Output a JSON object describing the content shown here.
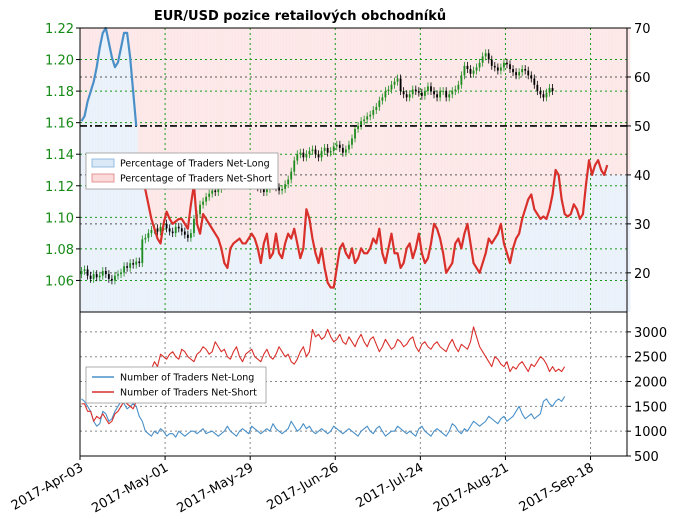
{
  "chart_data": {
    "type": "line",
    "title": "EUR/USD pozice retailových obchodníků",
    "colors": {
      "price_axis": "#168a16",
      "long": "#4a90c8",
      "short": "#d9302b",
      "candle_up": "#1e8c1e",
      "candle_down": "#000000",
      "long_fill": "#dbe8f5",
      "short_fill": "#fbdada",
      "level_line": "#000000"
    },
    "x_labels": [
      "2017-Apr-03",
      "2017-May-01",
      "2017-May-29",
      "2017-Jun-26",
      "2017-Jul-24",
      "2017-Aug-21",
      "2017-Sep-18"
    ],
    "top_panel": {
      "y_left_ticks": [
        "1.06",
        "1.08",
        "1.10",
        "1.12",
        "1.14",
        "1.16",
        "1.18",
        "1.20",
        "1.22"
      ],
      "y_left_range": [
        1.04,
        1.22
      ],
      "y_right_ticks": [
        "20",
        "30",
        "40",
        "50",
        "60",
        "70"
      ],
      "y_right_range": [
        12,
        70
      ],
      "reference_level": 50,
      "legend": {
        "position": "center-left",
        "entries": [
          "Percentage of Traders Net-Long",
          "Percentage of Traders Net-Short"
        ]
      },
      "price_candles": {
        "start": "2017-04-03",
        "interval_days": 1,
        "close": [
          1.066,
          1.067,
          1.063,
          1.061,
          1.064,
          1.062,
          1.063,
          1.066,
          1.064,
          1.061,
          1.06,
          1.063,
          1.064,
          1.065,
          1.069,
          1.068,
          1.071,
          1.07,
          1.072,
          1.071,
          1.086,
          1.087,
          1.09,
          1.092,
          1.093,
          1.091,
          1.094,
          1.096,
          1.093,
          1.091,
          1.09,
          1.094,
          1.093,
          1.091,
          1.089,
          1.087,
          1.09,
          1.099,
          1.102,
          1.108,
          1.11,
          1.113,
          1.115,
          1.117,
          1.116,
          1.118,
          1.12,
          1.122,
          1.121,
          1.122,
          1.124,
          1.126,
          1.123,
          1.125,
          1.127,
          1.125,
          1.123,
          1.121,
          1.119,
          1.118,
          1.116,
          1.118,
          1.12,
          1.121,
          1.119,
          1.117,
          1.118,
          1.121,
          1.124,
          1.129,
          1.136,
          1.14,
          1.141,
          1.138,
          1.14,
          1.142,
          1.143,
          1.14,
          1.138,
          1.142,
          1.144,
          1.141,
          1.142,
          1.145,
          1.146,
          1.144,
          1.141,
          1.143,
          1.146,
          1.15,
          1.156,
          1.158,
          1.161,
          1.162,
          1.164,
          1.165,
          1.168,
          1.17,
          1.174,
          1.176,
          1.18,
          1.181,
          1.184,
          1.186,
          1.188,
          1.18,
          1.178,
          1.176,
          1.178,
          1.181,
          1.18,
          1.179,
          1.177,
          1.18,
          1.183,
          1.18,
          1.178,
          1.176,
          1.18,
          1.18,
          1.176,
          1.178,
          1.18,
          1.181,
          1.184,
          1.19,
          1.196,
          1.194,
          1.191,
          1.193,
          1.195,
          1.198,
          1.202,
          1.204,
          1.2,
          1.196,
          1.195,
          1.193,
          1.195,
          1.198,
          1.197,
          1.194,
          1.192,
          1.19,
          1.192,
          1.194,
          1.193,
          1.19,
          1.188,
          1.184,
          1.18,
          1.178,
          1.176,
          1.179,
          1.182,
          1.18
        ]
      },
      "net_long_percent": {
        "start": "2017-04-03",
        "interval_days": 1,
        "values": [
          51.0,
          52.0,
          55.0,
          57.0,
          59.0,
          62.0,
          66.0,
          69.0,
          70.0,
          67.0,
          64.0,
          62.0,
          63.0,
          66.0,
          69.0,
          69.0,
          64.0,
          57.0,
          50.0
        ]
      },
      "net_short_percent": {
        "start": "2017-04-22",
        "interval_days": 1,
        "values": [
          44.0,
          42.0,
          37.0,
          34.0,
          31.0,
          29.0,
          27.0,
          26.0,
          30.0,
          32.5,
          31.0,
          30.0,
          30.5,
          31.0,
          31.0,
          30.0,
          29.0,
          34.0,
          38.0,
          30.0,
          28.0,
          32.0,
          31.0,
          30.0,
          29.0,
          28.0,
          27.0,
          25.0,
          22.0,
          21.0,
          25.0,
          26.0,
          26.5,
          27.0,
          26.0,
          26.0,
          27.0,
          28.0,
          27.0,
          25.0,
          22.0,
          26.0,
          28.0,
          23.0,
          24.0,
          28.0,
          24.0,
          23.0,
          26.0,
          28.0,
          27.0,
          29.0,
          26.0,
          23.0,
          25.0,
          33.0,
          31.0,
          27.0,
          24.0,
          22.0,
          25.0,
          21.0,
          18.0,
          17.0,
          17.0,
          21.0,
          25.0,
          26.0,
          24.0,
          23.0,
          25.0,
          22.0,
          23.0,
          25.0,
          24.0,
          24.0,
          25.0,
          27.0,
          26.0,
          29.0,
          24.0,
          22.0,
          25.0,
          28.0,
          24.0,
          24.0,
          21.0,
          22.0,
          25.0,
          26.0,
          23.0,
          25.0,
          28.0,
          24.0,
          22.0,
          23.0,
          26.0,
          30.0,
          29.0,
          27.0,
          24.0,
          20.0,
          21.0,
          22.0,
          26.0,
          27.0,
          25.0,
          28.0,
          30.0,
          26.0,
          22.0,
          21.0,
          20.0,
          22.0,
          24.0,
          27.0,
          26.0,
          27.0,
          28.0,
          30.0,
          26.0,
          24.0,
          22.0,
          25.0,
          27.0,
          28.0,
          31.0,
          33.0,
          35.0,
          36.0,
          33.0,
          32.0,
          31.0,
          31.5,
          31.0,
          33.0,
          36.0,
          41.0,
          40.0,
          35.0,
          32.0,
          31.5,
          32.0,
          34.0,
          33.0,
          31.0,
          32.0,
          38.0,
          43.0,
          40.0,
          42.0,
          43.0,
          41.0,
          40.0,
          42.0
        ]
      }
    },
    "bottom_panel": {
      "y_right_ticks": [
        "500",
        "1000",
        "1500",
        "2000",
        "2500",
        "3000"
      ],
      "y_right_range": [
        500,
        3400
      ],
      "legend": {
        "position": "center-left",
        "entries": [
          "Number of Traders Net-Long",
          "Number of Traders Net-Short"
        ]
      },
      "net_long": {
        "start": "2017-04-03",
        "interval_days": 1,
        "values": [
          1650,
          1600,
          1500,
          1400,
          1200,
          1100,
          1150,
          1400,
          1350,
          1200,
          1250,
          1400,
          1500,
          1600,
          1550,
          1450,
          1500,
          1550,
          1500,
          1300,
          1200,
          1000,
          950,
          900,
          1000,
          950,
          1050,
          1000,
          900,
          950,
          950,
          880,
          1000,
          950,
          900,
          950,
          1000,
          1000,
          950,
          1000,
          1050,
          950,
          980,
          1000,
          950,
          900,
          950,
          1000,
          1100,
          1000,
          950,
          900,
          1000,
          1050,
          1000,
          950,
          1100,
          1050,
          1000,
          950,
          1000,
          1050,
          1000,
          1150,
          1050,
          1000,
          950,
          1000,
          1050,
          1200,
          1100,
          1000,
          1050,
          1150,
          1050,
          1100,
          1000,
          950,
          1000,
          1050,
          1000,
          950,
          1000,
          1100,
          1050,
          1000,
          950,
          1000,
          1050,
          1000,
          950,
          900,
          1000,
          1050,
          1100,
          1000,
          950,
          1050,
          1100,
          1000,
          900,
          950,
          1000,
          1000,
          1100,
          1050,
          1000,
          950,
          1000,
          950,
          900,
          1050,
          1100,
          1000,
          950,
          900,
          1000,
          1050,
          1000,
          950,
          900,
          1000,
          1150,
          1100,
          1000,
          950,
          1050,
          1000,
          1100,
          1200,
          1150,
          1100,
          1150,
          1200,
          1300,
          1250,
          1200,
          1150,
          1250,
          1300,
          1200,
          1250,
          1300,
          1400,
          1500,
          1350,
          1250,
          1300,
          1350,
          1250,
          1300,
          1350,
          1600,
          1650,
          1550,
          1500,
          1600,
          1650,
          1600,
          1700
        ]
      },
      "net_short": {
        "start": "2017-04-03",
        "interval_days": 1,
        "values": [
          1550,
          1550,
          1400,
          1400,
          1200,
          1300,
          1250,
          1350,
          1250,
          1150,
          1200,
          1350,
          1400,
          1500,
          1600,
          1550,
          1500,
          1450,
          1600,
          1800,
          1850,
          1900,
          2100,
          2250,
          2400,
          2300,
          2550,
          2500,
          2450,
          2550,
          2600,
          2500,
          2450,
          2650,
          2600,
          2500,
          2450,
          2400,
          2550,
          2600,
          2700,
          2650,
          2550,
          2600,
          2800,
          2700,
          2600,
          2650,
          2500,
          2450,
          2600,
          2700,
          2500,
          2400,
          2550,
          2600,
          2650,
          2500,
          2450,
          2400,
          2550,
          2650,
          2500,
          2450,
          2550,
          2700,
          2600,
          2500,
          2550,
          2400,
          2350,
          2450,
          2600,
          2700,
          2500,
          2600,
          3050,
          2900,
          2950,
          2850,
          2900,
          3050,
          2900,
          2800,
          2850,
          2950,
          2800,
          2750,
          2900,
          2800,
          2700,
          2850,
          2950,
          2800,
          2700,
          2850,
          2900,
          2750,
          2600,
          2700,
          2850,
          2750,
          2650,
          2700,
          2850,
          2800,
          2700,
          2750,
          2850,
          2900,
          2700,
          2600,
          2750,
          2800,
          2700,
          2650,
          2750,
          2800,
          2700,
          2650,
          2600,
          2750,
          2850,
          2700,
          2600,
          2750,
          2700,
          2650,
          2800,
          3100,
          2900,
          2700,
          2600,
          2500,
          2400,
          2300,
          2500,
          2450,
          2350,
          2300,
          2400,
          2200,
          2300,
          2250,
          2350,
          2400,
          2300,
          2200,
          2350,
          2300,
          2400,
          2500,
          2450,
          2350,
          2200,
          2300,
          2200,
          2250,
          2200,
          2300
        ]
      }
    }
  }
}
